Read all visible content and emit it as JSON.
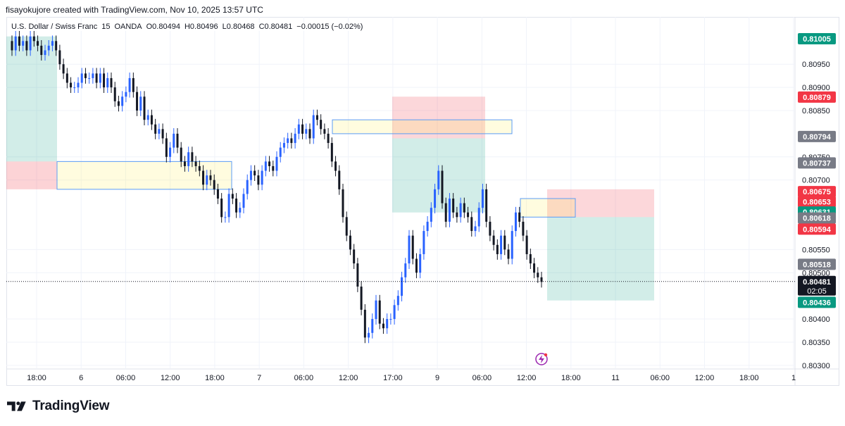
{
  "header": {
    "credit": "fisayokujore created with TradingView.com, Nov 10, 2025 13:57 UTC",
    "symbol": "U.S. Dollar / Swiss Franc",
    "interval": "15",
    "source": "OANDA",
    "open": "O0.80494",
    "high": "H0.80496",
    "low": "L0.80468",
    "close": "C0.80481",
    "change": "−0.00015 (−0.02%)"
  },
  "brand": {
    "name": "TradingView"
  },
  "chart_data": {
    "type": "candlestick",
    "y_ticks": [
      "0.80950",
      "0.80900",
      "0.80850",
      "0.80750",
      "0.80700",
      "0.80550",
      "0.80500",
      "0.80400",
      "0.80350",
      "0.80300"
    ],
    "ylim": [
      0.8028,
      0.8104
    ],
    "x_ticks": [
      "18:00",
      "6",
      "06:00",
      "12:00",
      "18:00",
      "7",
      "06:00",
      "12:00",
      "17:00",
      "9",
      "06:00",
      "12:00",
      "18:00",
      "11",
      "06:00",
      "12:00",
      "18:00",
      "1"
    ],
    "price_labels": [
      {
        "value": "0.81005",
        "color": "#089981"
      },
      {
        "value": "0.80879",
        "color": "#f23645"
      },
      {
        "value": "0.80794",
        "color": "#787b86"
      },
      {
        "value": "0.80737",
        "color": "#787b86"
      },
      {
        "value": "0.80675",
        "color": "#f23645"
      },
      {
        "value": "0.80653",
        "color": "#f23645"
      },
      {
        "value": "0.80631",
        "color": "#089981"
      },
      {
        "value": "0.80618",
        "color": "#787b86"
      },
      {
        "value": "0.80594",
        "color": "#f23645"
      },
      {
        "value": "0.80518",
        "color": "#787b86"
      },
      {
        "value": "0.80436",
        "color": "#089981"
      }
    ],
    "current_price": {
      "value": "0.80481",
      "countdown": "02:05",
      "color": "#131722"
    },
    "series": [
      {
        "values": [
          0.8098,
          0.8101,
          0.8099,
          0.81,
          0.8098,
          0.8101,
          0.81,
          0.8099,
          0.8097,
          0.8098,
          0.8099,
          0.81,
          0.8098,
          0.8095,
          0.8093,
          0.8091,
          0.809,
          0.809,
          0.8091,
          0.8093,
          0.8092,
          0.8092,
          0.8093,
          0.8091,
          0.8093,
          0.809,
          0.8092,
          0.809,
          0.8087,
          0.8086,
          0.8088,
          0.8089,
          0.8092,
          0.8089,
          0.8085,
          0.8088,
          0.8083,
          0.8084,
          0.8082,
          0.808,
          0.8081,
          0.8079,
          0.8075,
          0.8077,
          0.808,
          0.8077,
          0.8074,
          0.8073,
          0.8076,
          0.8074,
          0.8073,
          0.8072,
          0.8069,
          0.8071,
          0.807,
          0.8068,
          0.8066,
          0.8062,
          0.8062,
          0.8067,
          0.8066,
          0.8063,
          0.8064,
          0.8067,
          0.807,
          0.8072,
          0.8071,
          0.8069,
          0.8072,
          0.8074,
          0.8073,
          0.8072,
          0.8075,
          0.8077,
          0.8078,
          0.8079,
          0.8078,
          0.808,
          0.8082,
          0.808,
          0.8081,
          0.8079,
          0.8084,
          0.8083,
          0.8081,
          0.808,
          0.8078,
          0.8074,
          0.8072,
          0.8068,
          0.8062,
          0.8058,
          0.8055,
          0.8052,
          0.8047,
          0.8042,
          0.8036,
          0.8037,
          0.804,
          0.8044,
          0.8039,
          0.8038,
          0.804,
          0.804,
          0.8043,
          0.8045,
          0.8049,
          0.8052,
          0.8058,
          0.8053,
          0.805,
          0.8054,
          0.8059,
          0.8061,
          0.8064,
          0.8068,
          0.8072,
          0.8065,
          0.8061,
          0.8066,
          0.8063,
          0.8062,
          0.8065,
          0.8063,
          0.8062,
          0.8059,
          0.806,
          0.8064,
          0.8068,
          0.8061,
          0.8058,
          0.8056,
          0.8054,
          0.8058,
          0.8055,
          0.8053,
          0.8059,
          0.8063,
          0.8061,
          0.8058,
          0.8054,
          0.8052,
          0.805,
          0.8049,
          0.8048
        ]
      }
    ]
  }
}
